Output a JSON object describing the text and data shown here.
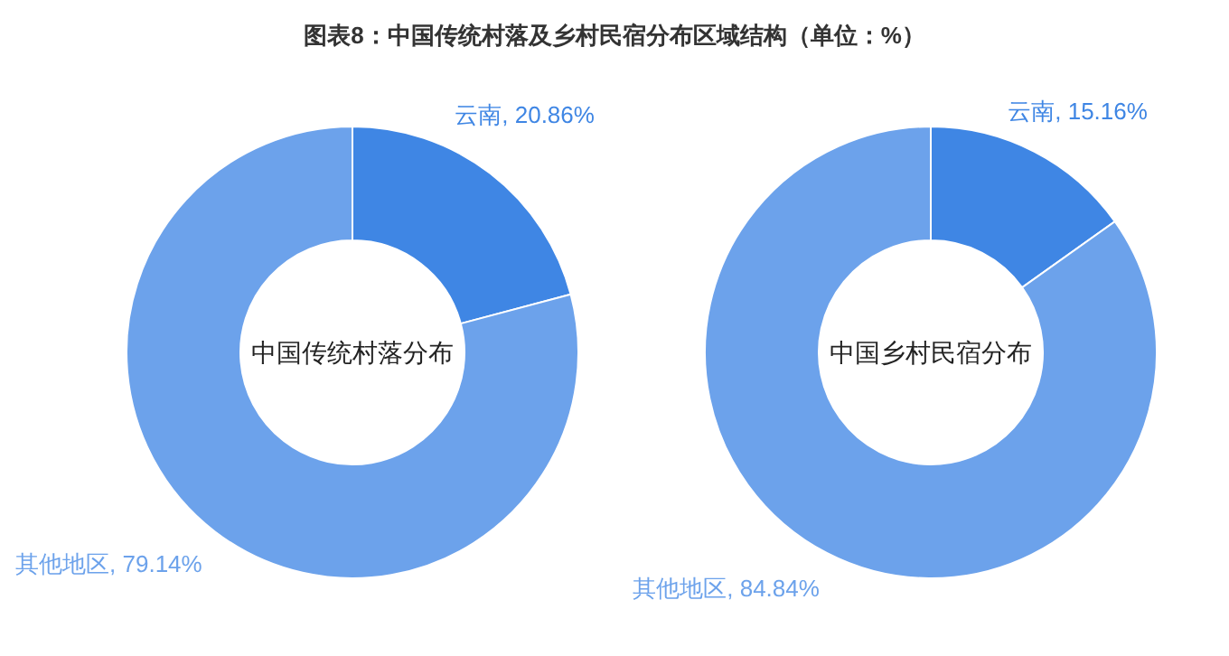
{
  "chart_data": [
    {
      "type": "donut",
      "title": "图表8：中国传统村落及乡村民宿分布区域结构（单位：%）",
      "annotations": [
        "中国传统村落分布"
      ],
      "categories": [
        "云南",
        "其他地区"
      ],
      "values": [
        20.86,
        79.14
      ],
      "value_labels": [
        "20.86%",
        "79.14%"
      ],
      "colors": [
        "#3f86e4",
        "#6ca2eb"
      ]
    },
    {
      "type": "donut",
      "annotations": [
        "中国乡村民宿分布"
      ],
      "categories": [
        "云南",
        "其他地区"
      ],
      "values": [
        15.16,
        84.84
      ],
      "value_labels": [
        "15.16%",
        "84.84%"
      ],
      "colors": [
        "#3f86e4",
        "#6ca2eb"
      ]
    }
  ]
}
